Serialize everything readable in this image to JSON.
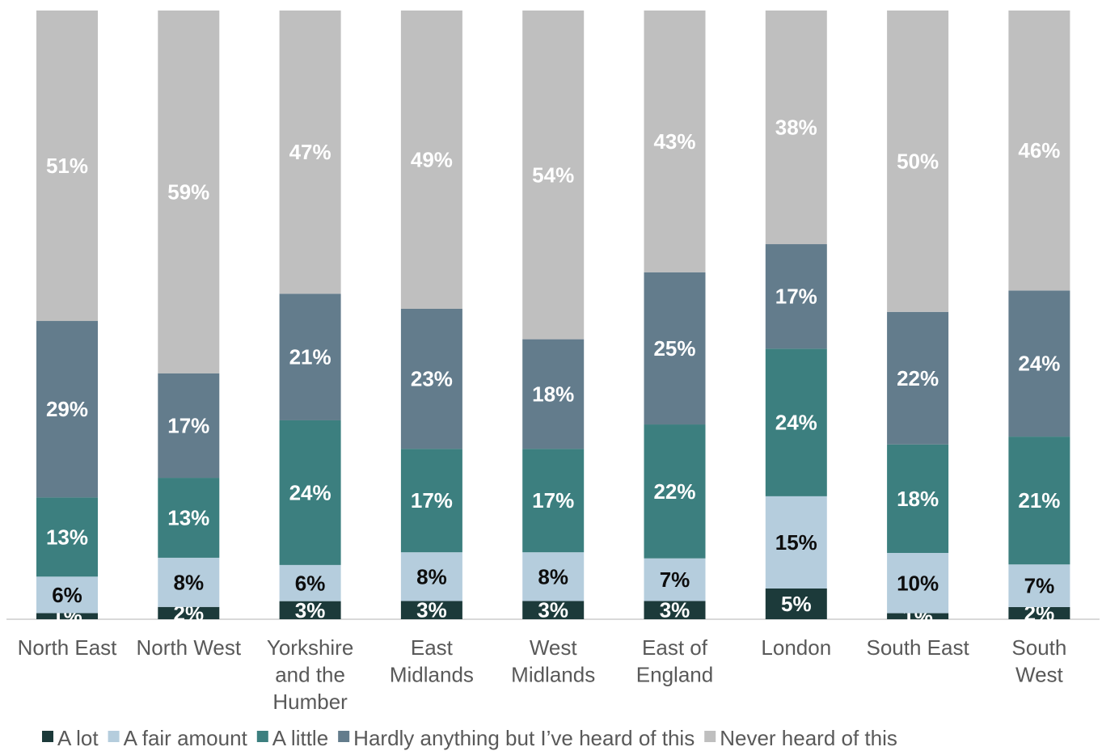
{
  "chart_data": {
    "type": "bar",
    "stacked": true,
    "percent": true,
    "title": "",
    "xlabel": "",
    "ylabel": "",
    "ylim": [
      0,
      100
    ],
    "grid": false,
    "legend_position": "bottom",
    "categories": [
      [
        "North East"
      ],
      [
        "North West"
      ],
      [
        "Yorkshire",
        "and the",
        "Humber"
      ],
      [
        "East",
        "Midlands"
      ],
      [
        "West",
        "Midlands"
      ],
      [
        "East of",
        "England"
      ],
      [
        "London"
      ],
      [
        "South East"
      ],
      [
        "South",
        "West"
      ]
    ],
    "series": [
      {
        "name": "A lot",
        "color": "#1c3a3a",
        "label_color": "#ffffff",
        "values": [
          1,
          2,
          3,
          3,
          3,
          3,
          5,
          1,
          2
        ],
        "labels": [
          "1%",
          "2%",
          "3%",
          "3%",
          "3%",
          "3%",
          "5%",
          "1%",
          "2%"
        ]
      },
      {
        "name": "A fair amount",
        "color": "#b5cddd",
        "label_color": "#0d0d0d",
        "values": [
          6,
          8,
          6,
          8,
          8,
          7,
          15,
          10,
          7
        ],
        "labels": [
          "6%",
          "8%",
          "6%",
          "8%",
          "8%",
          "7%",
          "15%",
          "10%",
          "7%"
        ]
      },
      {
        "name": "A little",
        "color": "#3c7f7f",
        "label_color": "#ffffff",
        "values": [
          13,
          13,
          24,
          17,
          17,
          22,
          24,
          18,
          21
        ],
        "labels": [
          "13%",
          "13%",
          "24%",
          "17%",
          "17%",
          "22%",
          "24%",
          "18%",
          "21%"
        ]
      },
      {
        "name": "Hardly anything but I’ve heard of this",
        "color": "#637c8c",
        "label_color": "#ffffff",
        "values": [
          29,
          17,
          21,
          23,
          18,
          25,
          17,
          22,
          24
        ],
        "labels": [
          "29%",
          "17%",
          "21%",
          "23%",
          "18%",
          "25%",
          "17%",
          "22%",
          "24%"
        ]
      },
      {
        "name": "Never heard of this",
        "color": "#bfbfbf",
        "label_color": "#ffffff",
        "values": [
          51,
          59,
          47,
          49,
          54,
          43,
          38,
          50,
          46
        ],
        "labels": [
          "51%",
          "59%",
          "47%",
          "49%",
          "54%",
          "43%",
          "38%",
          "50%",
          "46%"
        ]
      }
    ]
  }
}
